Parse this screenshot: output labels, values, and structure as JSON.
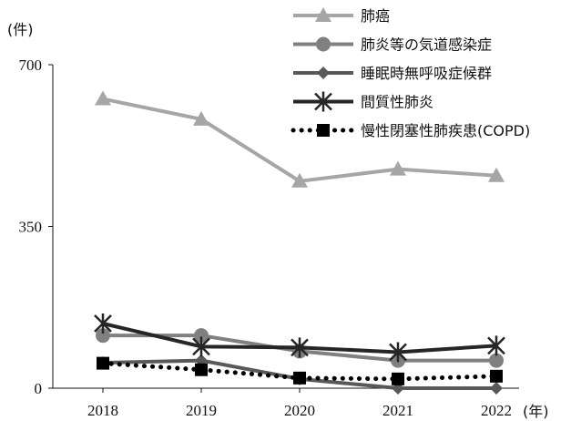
{
  "chart_data": {
    "type": "line",
    "y_unit_label": "(件)",
    "x_unit_label": "(年)",
    "categories": [
      "2018",
      "2019",
      "2020",
      "2021",
      "2022"
    ],
    "ylim": [
      0,
      700
    ],
    "yticks": [
      "0",
      "350",
      "700"
    ],
    "grid": false,
    "legend_position": "top-right",
    "series": [
      {
        "name": "肺癌",
        "values": [
          626,
          582,
          448,
          474,
          460
        ],
        "color": "#a6a6a6",
        "marker": "triangle",
        "line": "solid",
        "width": 4
      },
      {
        "name": "肺炎等の気道感染症",
        "values": [
          114,
          114,
          80,
          60,
          60
        ],
        "color": "#808080",
        "marker": "circle",
        "line": "solid",
        "width": 4
      },
      {
        "name": "睡眠時無呼吸症候群",
        "values": [
          55,
          60,
          20,
          0,
          0
        ],
        "color": "#595959",
        "marker": "diamond",
        "line": "solid",
        "width": 4
      },
      {
        "name": "間質性肺炎",
        "values": [
          140,
          90,
          88,
          78,
          92
        ],
        "color": "#262626",
        "marker": "asterisk",
        "line": "solid",
        "width": 4
      },
      {
        "name": "慢性閉塞性肺疾患(COPD)",
        "values": [
          54,
          40,
          22,
          20,
          26
        ],
        "color": "#000000",
        "marker": "square",
        "line": "dotted",
        "width": 4
      }
    ]
  }
}
